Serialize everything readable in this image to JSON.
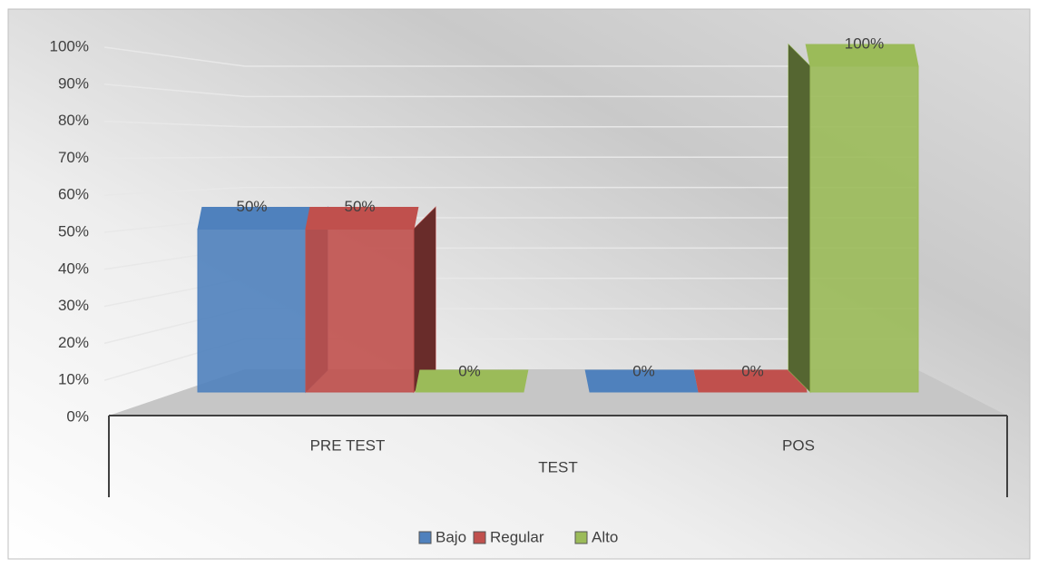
{
  "chart_data": {
    "type": "bar",
    "categories": [
      "PRE TEST",
      "POS"
    ],
    "x_label": "TEST",
    "series": [
      {
        "name": "Bajo",
        "color": "#4f81bd",
        "values": [
          50,
          0
        ],
        "value_labels": [
          "50%",
          "0%"
        ]
      },
      {
        "name": "Regular",
        "color": "#c0504d",
        "values": [
          50,
          0
        ],
        "value_labels": [
          "50%",
          "0%"
        ]
      },
      {
        "name": "Alto",
        "color": "#9bbb59",
        "values": [
          0,
          100
        ],
        "value_labels": [
          "0%",
          "100%"
        ]
      }
    ],
    "ylim": [
      0,
      100
    ],
    "yticks": [
      {
        "value": 0,
        "label": "0%"
      },
      {
        "value": 10,
        "label": "10%"
      },
      {
        "value": 20,
        "label": "20%"
      },
      {
        "value": 30,
        "label": "30%"
      },
      {
        "value": 40,
        "label": "40%"
      },
      {
        "value": 50,
        "label": "50%"
      },
      {
        "value": 60,
        "label": "60%"
      },
      {
        "value": 70,
        "label": "70%"
      },
      {
        "value": 80,
        "label": "80%"
      },
      {
        "value": 90,
        "label": "90%"
      },
      {
        "value": 100,
        "label": "100%"
      }
    ],
    "grid": true,
    "legend": "bottom"
  }
}
